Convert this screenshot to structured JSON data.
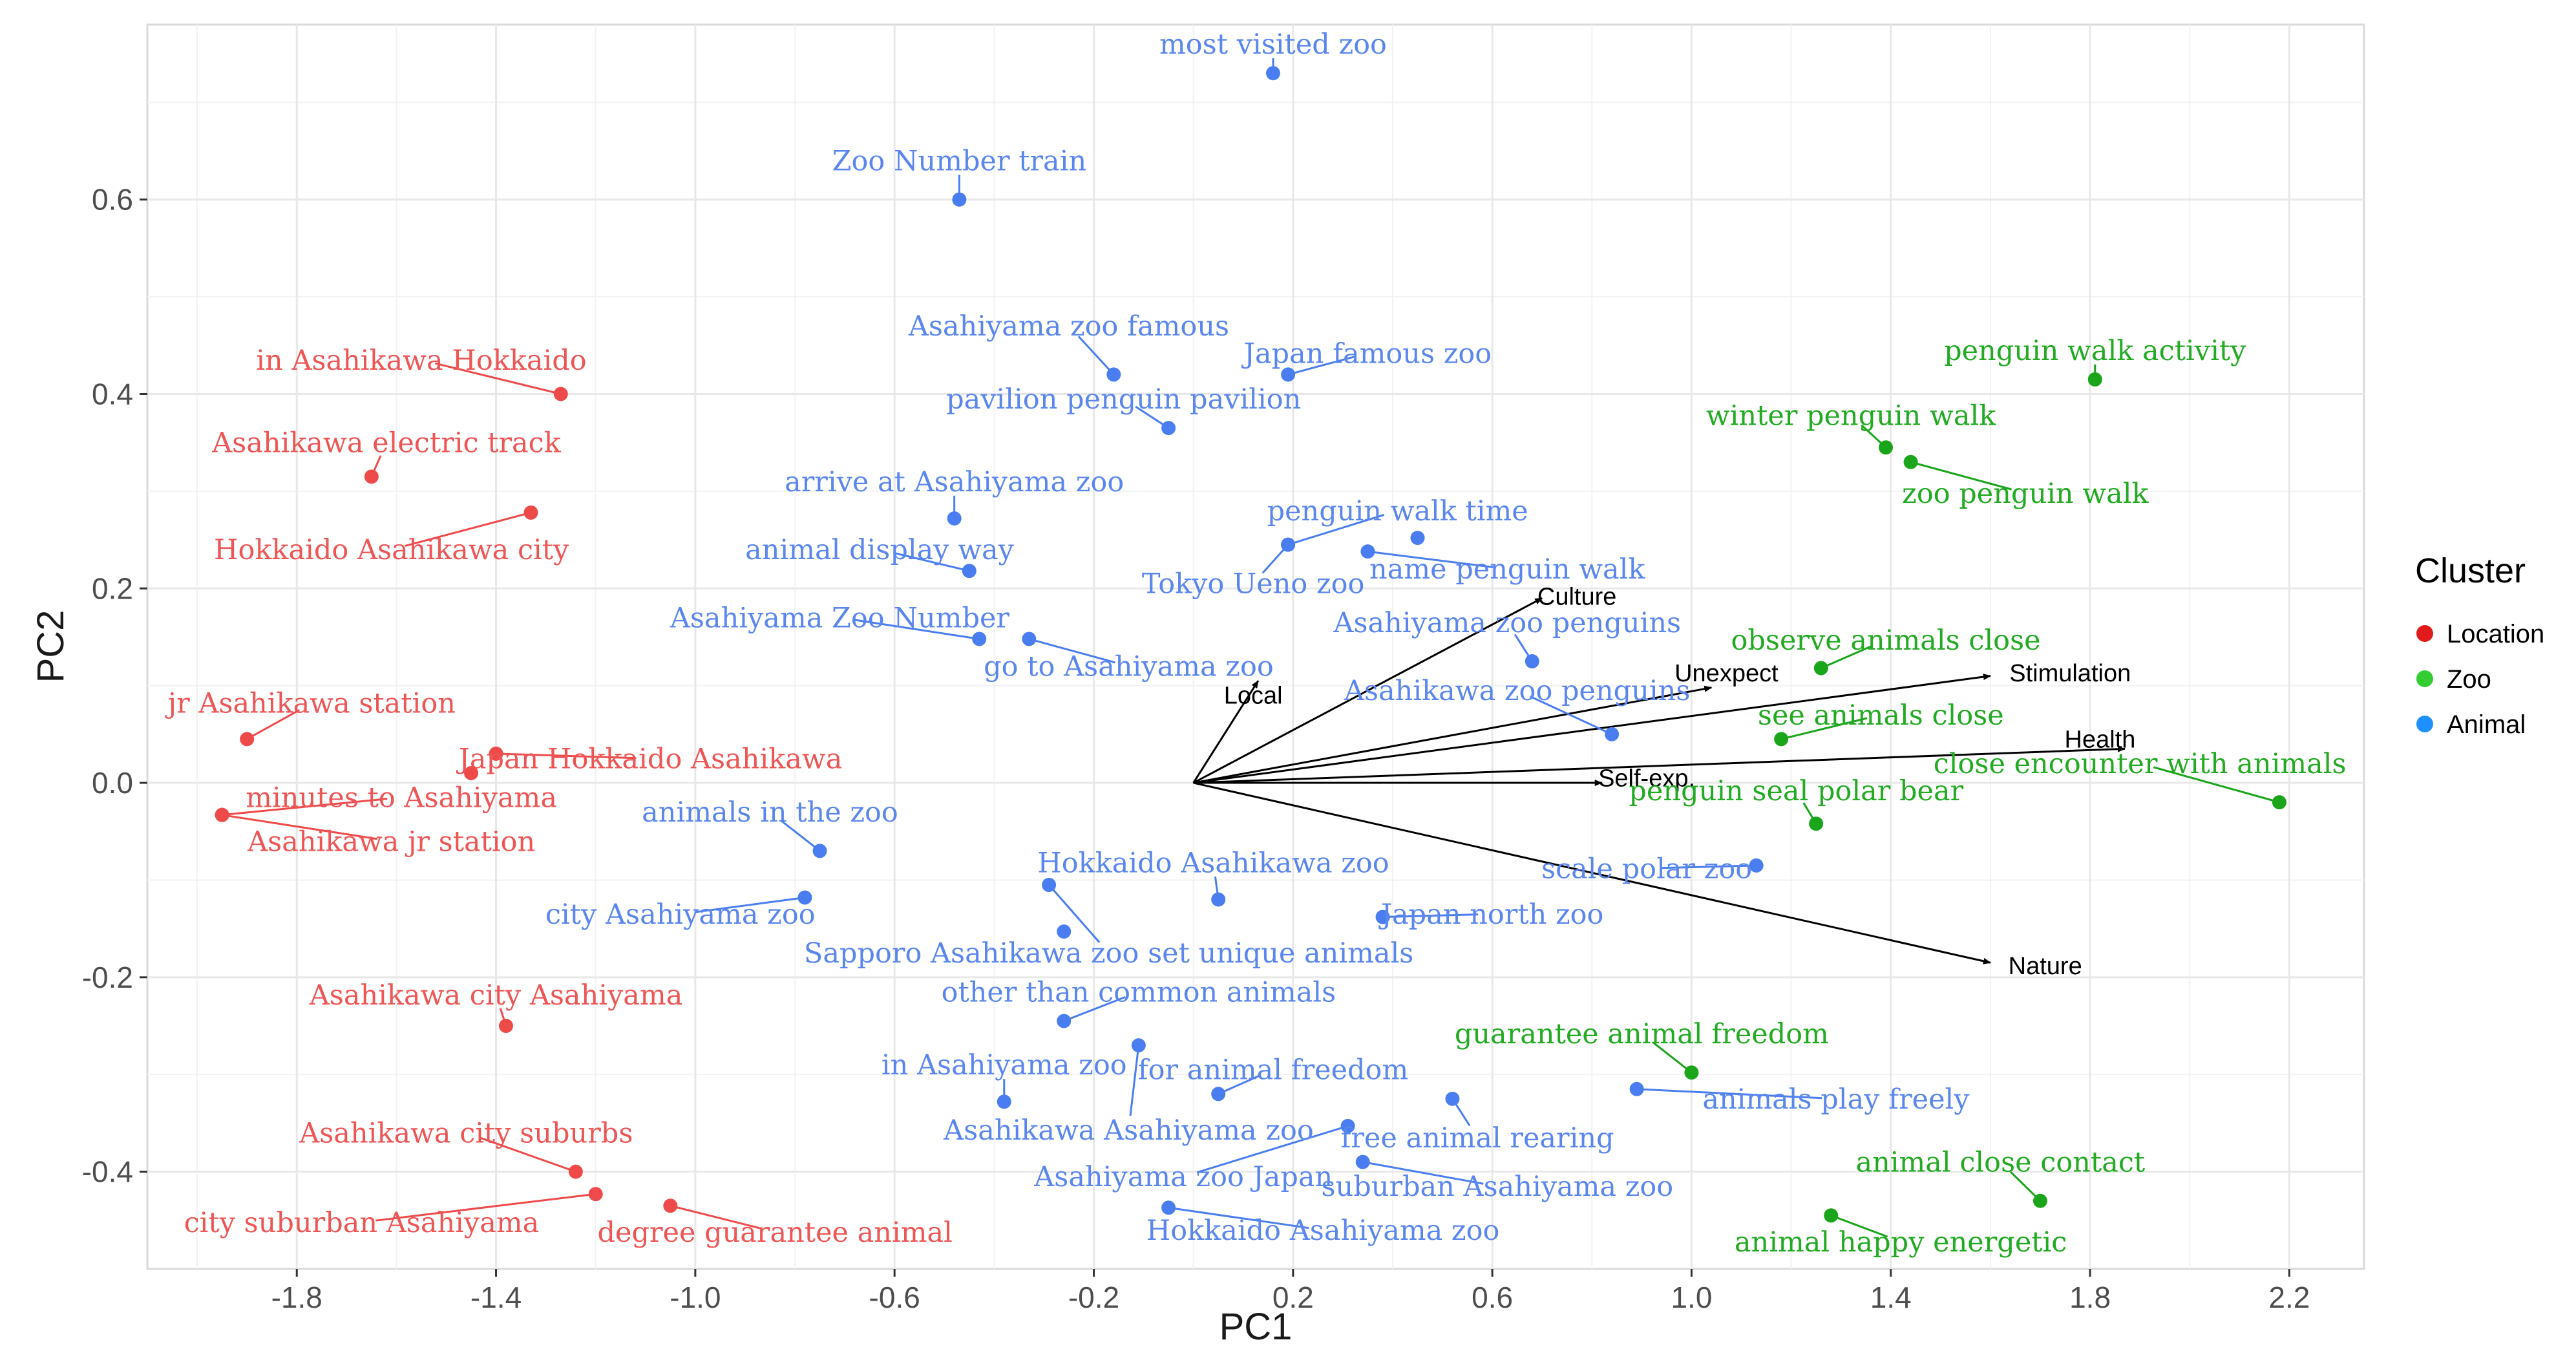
{
  "chart_data": {
    "type": "scatter",
    "title": "",
    "xlabel": "PC1",
    "ylabel": "PC2",
    "xlim": [
      -2.1,
      2.35
    ],
    "ylim": [
      -0.5,
      0.78
    ],
    "x_ticks": [
      -1.8,
      -1.4,
      -1.0,
      -0.6,
      -0.2,
      0.2,
      0.6,
      1.0,
      1.4,
      1.8,
      2.2
    ],
    "x_tick_labels": [
      "-1.8",
      "-1.4",
      "-1.0",
      "-0.6",
      "-0.2",
      "0.2",
      "0.6",
      "1.0",
      "1.4",
      "1.8",
      "2.2"
    ],
    "y_ticks": [
      -0.4,
      -0.2,
      0.0,
      0.2,
      0.4,
      0.6
    ],
    "y_tick_labels": [
      "-0.4",
      "-0.2",
      "0.0",
      "0.2",
      "0.4",
      "0.6"
    ],
    "grid": true,
    "legend": {
      "title": "Cluster",
      "position": "right",
      "entries": [
        {
          "name": "Location",
          "color": "#e31a1c"
        },
        {
          "name": "Zoo",
          "color": "#33cc33"
        },
        {
          "name": "Animal",
          "color": "#1e90ff"
        }
      ]
    },
    "colors": {
      "Location": {
        "point": "#ee4a4a",
        "text": "#ee5555"
      },
      "Zoo": {
        "point": "#1aa51a",
        "text": "#22aa22"
      },
      "Animal": {
        "point": "#4a7ef0",
        "text": "#5a86ee"
      }
    },
    "points": [
      {
        "label": "in Asahikawa Hokkaido",
        "cluster": "Location",
        "x": -1.27,
        "y": 0.4,
        "lx": -1.55,
        "ly": 0.435
      },
      {
        "label": "Asahikawa electric track",
        "cluster": "Location",
        "x": -1.65,
        "y": 0.315,
        "lx": -1.62,
        "ly": 0.35
      },
      {
        "label": "Hokkaido Asahikawa city",
        "cluster": "Location",
        "x": -1.33,
        "y": 0.278,
        "lx": -1.61,
        "ly": 0.24
      },
      {
        "label": "jr Asahikawa station",
        "cluster": "Location",
        "x": -1.9,
        "y": 0.045,
        "lx": -1.77,
        "ly": 0.082
      },
      {
        "label": "Japan Hokkaido Asahikawa",
        "cluster": "Location",
        "x": -1.4,
        "y": 0.03,
        "lx": -1.09,
        "ly": 0.025
      },
      {
        "label": "",
        "cluster": "Location",
        "x": -1.45,
        "y": 0.01
      },
      {
        "label": "minutes to Asahiyama",
        "cluster": "Location",
        "x": -1.95,
        "y": -0.033,
        "lx": -1.59,
        "ly": -0.015
      },
      {
        "label": "Asahikawa jr station",
        "cluster": "Location",
        "x": -1.95,
        "y": -0.033,
        "lx": -1.61,
        "ly": -0.06
      },
      {
        "label": "Asahikawa city Asahiyama",
        "cluster": "Location",
        "x": -1.38,
        "y": -0.25,
        "lx": -1.4,
        "ly": -0.218
      },
      {
        "label": "Asahikawa city suburbs",
        "cluster": "Location",
        "x": -1.24,
        "y": -0.4,
        "lx": -1.46,
        "ly": -0.36
      },
      {
        "label": "city suburban Asahiyama",
        "cluster": "Location",
        "x": -1.2,
        "y": -0.423,
        "lx": -1.67,
        "ly": -0.452
      },
      {
        "label": "degree guarantee animal",
        "cluster": "Location",
        "x": -1.05,
        "y": -0.435,
        "lx": -0.84,
        "ly": -0.462
      },
      {
        "label": "most visited zoo",
        "cluster": "Animal",
        "x": 0.16,
        "y": 0.73,
        "lx": 0.16,
        "ly": 0.76
      },
      {
        "label": "Zoo Number train",
        "cluster": "Animal",
        "x": -0.47,
        "y": 0.6,
        "lx": -0.47,
        "ly": 0.64
      },
      {
        "label": "Asahiyama zoo famous",
        "cluster": "Animal",
        "x": -0.16,
        "y": 0.42,
        "lx": -0.25,
        "ly": 0.47
      },
      {
        "label": "Japan famous zoo",
        "cluster": "Animal",
        "x": 0.19,
        "y": 0.42,
        "lx": 0.35,
        "ly": 0.442
      },
      {
        "label": "pavilion penguin pavilion",
        "cluster": "Animal",
        "x": -0.05,
        "y": 0.365,
        "lx": -0.14,
        "ly": 0.395
      },
      {
        "label": "arrive at Asahiyama zoo",
        "cluster": "Animal",
        "x": -0.48,
        "y": 0.272,
        "lx": -0.48,
        "ly": 0.31
      },
      {
        "label": "penguin walk time",
        "cluster": "Animal",
        "x": 0.19,
        "y": 0.245,
        "lx": 0.41,
        "ly": 0.28
      },
      {
        "label": "name penguin walk",
        "cluster": "Animal",
        "x": 0.35,
        "y": 0.238,
        "lx": 0.63,
        "ly": 0.22
      },
      {
        "label": "",
        "cluster": "Animal",
        "x": 0.45,
        "y": 0.252
      },
      {
        "label": "animal display way",
        "cluster": "Animal",
        "x": -0.45,
        "y": 0.218,
        "lx": -0.63,
        "ly": 0.24
      },
      {
        "label": "Tokyo Ueno zoo",
        "cluster": "Animal",
        "x": 0.19,
        "y": 0.245,
        "lx": 0.12,
        "ly": 0.205
      },
      {
        "label": "Asahiyama Zoo Number",
        "cluster": "Animal",
        "x": -0.43,
        "y": 0.148,
        "lx": -0.71,
        "ly": 0.17
      },
      {
        "label": "go to Asahiyama zoo",
        "cluster": "Animal",
        "x": -0.33,
        "y": 0.148,
        "lx": -0.13,
        "ly": 0.12
      },
      {
        "label": "Asahiyama zoo penguins",
        "cluster": "Animal",
        "x": 0.68,
        "y": 0.125,
        "lx": 0.63,
        "ly": 0.165
      },
      {
        "label": "Asahikawa zoo penguins",
        "cluster": "Animal",
        "x": 0.84,
        "y": 0.05,
        "lx": 0.65,
        "ly": 0.095
      },
      {
        "label": "animals in the zoo",
        "cluster": "Animal",
        "x": -0.75,
        "y": -0.07,
        "lx": -0.85,
        "ly": -0.03
      },
      {
        "label": "Hokkaido Asahikawa zoo",
        "cluster": "Animal",
        "x": 0.05,
        "y": -0.12,
        "lx": 0.04,
        "ly": -0.082
      },
      {
        "label": "city Asahiyama zoo",
        "cluster": "Animal",
        "x": -0.78,
        "y": -0.118,
        "lx": -1.03,
        "ly": -0.135
      },
      {
        "label": "Japan north zoo",
        "cluster": "Animal",
        "x": 0.38,
        "y": -0.138,
        "lx": 0.6,
        "ly": -0.135
      },
      {
        "label": "scale polar zoo",
        "cluster": "Animal",
        "x": 1.13,
        "y": -0.085,
        "lx": 0.91,
        "ly": -0.088
      },
      {
        "label": "Sapporo Asahikawa zoo set unique animals",
        "cluster": "Animal",
        "x": -0.29,
        "y": -0.105,
        "lx": -0.17,
        "ly": -0.175
      },
      {
        "label": "",
        "cluster": "Animal",
        "x": -0.26,
        "y": -0.153
      },
      {
        "label": "other than common animals",
        "cluster": "Animal",
        "x": -0.26,
        "y": -0.245,
        "lx": -0.11,
        "ly": -0.215
      },
      {
        "label": "in Asahiyama zoo",
        "cluster": "Animal",
        "x": -0.38,
        "y": -0.328,
        "lx": -0.38,
        "ly": -0.29
      },
      {
        "label": "for animal freedom",
        "cluster": "Animal",
        "x": 0.05,
        "y": -0.32,
        "lx": 0.16,
        "ly": -0.295
      },
      {
        "label": "animals play freely",
        "cluster": "Animal",
        "x": 0.89,
        "y": -0.315,
        "lx": 1.29,
        "ly": -0.325
      },
      {
        "label": "Asahikawa Asahiyama zoo",
        "cluster": "Animal",
        "x": -0.11,
        "y": -0.27,
        "lx": -0.13,
        "ly": -0.357
      },
      {
        "label": "free animal rearing",
        "cluster": "Animal",
        "x": 0.52,
        "y": -0.325,
        "lx": 0.57,
        "ly": -0.365
      },
      {
        "label": "Asahiyama zoo Japan",
        "cluster": "Animal",
        "x": 0.31,
        "y": -0.353,
        "lx": -0.02,
        "ly": -0.405
      },
      {
        "label": "suburban Asahiyama zoo",
        "cluster": "Animal",
        "x": 0.34,
        "y": -0.39,
        "lx": 0.61,
        "ly": -0.415
      },
      {
        "label": "Hokkaido Asahiyama zoo",
        "cluster": "Animal",
        "x": -0.05,
        "y": -0.437,
        "lx": 0.26,
        "ly": -0.46
      },
      {
        "label": "penguin walk activity",
        "cluster": "Zoo",
        "x": 1.81,
        "y": 0.415,
        "lx": 1.81,
        "ly": 0.445
      },
      {
        "label": "winter penguin walk",
        "cluster": "Zoo",
        "x": 1.39,
        "y": 0.345,
        "lx": 1.32,
        "ly": 0.378
      },
      {
        "label": "zoo penguin walk",
        "cluster": "Zoo",
        "x": 1.44,
        "y": 0.33,
        "lx": 1.67,
        "ly": 0.298
      },
      {
        "label": "observe animals close",
        "cluster": "Zoo",
        "x": 1.26,
        "y": 0.118,
        "lx": 1.39,
        "ly": 0.147
      },
      {
        "label": "see animals close",
        "cluster": "Zoo",
        "x": 1.18,
        "y": 0.045,
        "lx": 1.38,
        "ly": 0.07
      },
      {
        "label": "close encounter with animals",
        "cluster": "Zoo",
        "x": 2.18,
        "y": -0.02,
        "lx": 1.9,
        "ly": 0.02
      },
      {
        "label": "penguin seal polar bear",
        "cluster": "Zoo",
        "x": 1.25,
        "y": -0.042,
        "lx": 1.21,
        "ly": -0.008
      },
      {
        "label": "guarantee animal freedom",
        "cluster": "Zoo",
        "x": 1.0,
        "y": -0.298,
        "lx": 0.9,
        "ly": -0.258
      },
      {
        "label": "animal close contact",
        "cluster": "Zoo",
        "x": 1.7,
        "y": -0.43,
        "lx": 1.62,
        "ly": -0.39
      },
      {
        "label": "animal happy energetic",
        "cluster": "Zoo",
        "x": 1.28,
        "y": -0.445,
        "lx": 1.42,
        "ly": -0.472
      }
    ],
    "loadings": [
      {
        "name": "Local",
        "x": 0.13,
        "y": 0.105,
        "lx": 0.12,
        "ly": 0.09
      },
      {
        "name": "Culture",
        "x": 0.7,
        "y": 0.19,
        "lx": 0.77,
        "ly": 0.192
      },
      {
        "name": "Unexpect",
        "x": 1.04,
        "y": 0.098,
        "lx": 1.07,
        "ly": 0.113
      },
      {
        "name": "Stimulation",
        "x": 1.6,
        "y": 0.11,
        "lx": 1.76,
        "ly": 0.113
      },
      {
        "name": "Health",
        "x": 1.87,
        "y": 0.035,
        "lx": 1.82,
        "ly": 0.045
      },
      {
        "name": "Self-exp.",
        "x": 0.82,
        "y": 0.0,
        "lx": 0.91,
        "ly": 0.005
      },
      {
        "name": "Nature",
        "x": 1.6,
        "y": -0.185,
        "lx": 1.71,
        "ly": -0.188
      }
    ]
  }
}
